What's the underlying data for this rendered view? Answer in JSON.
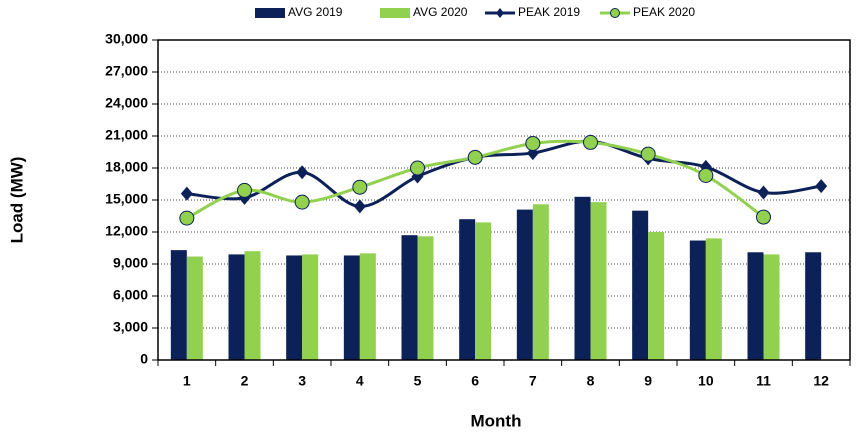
{
  "chart_data": {
    "type": "bar",
    "categories": [
      "1",
      "2",
      "3",
      "4",
      "5",
      "6",
      "7",
      "8",
      "9",
      "10",
      "11",
      "12"
    ],
    "x_label": "Month",
    "y_label": "Load (MW)",
    "ylim": [
      0,
      30000
    ],
    "yticks": [
      0,
      {
        "value": 3000,
        "label": "3,000"
      },
      {
        "value": 6000,
        "label": "6,000"
      },
      {
        "value": 9000,
        "label": "9,000"
      },
      {
        "value": 12000,
        "label": "12,000"
      },
      {
        "value": 15000,
        "label": "15,000"
      },
      {
        "value": 18000,
        "label": "18,000"
      },
      {
        "value": 21000,
        "label": "21,000"
      },
      {
        "value": 24000,
        "label": "24,000"
      },
      {
        "value": 27000,
        "label": "27,000"
      },
      {
        "value": 30000,
        "label": "30,000"
      }
    ],
    "grid": true,
    "legend": "top",
    "series": [
      {
        "name": "AVG 2019",
        "type": "bar",
        "color": "#0d2159",
        "values": [
          10300,
          9900,
          9800,
          9800,
          11700,
          13200,
          14100,
          15300,
          14000,
          11200,
          10100,
          10100
        ]
      },
      {
        "name": "AVG 2020",
        "type": "bar",
        "color": "#92d050",
        "values": [
          9700,
          10200,
          9900,
          10000,
          11600,
          12900,
          14600,
          14800,
          12000,
          11400,
          9900,
          null
        ]
      },
      {
        "name": "PEAK 2019",
        "type": "line",
        "marker": "diamond",
        "color": "#0d2159",
        "values": [
          15600,
          15200,
          17600,
          14400,
          17200,
          19000,
          19400,
          20500,
          18900,
          18100,
          15700,
          16300
        ]
      },
      {
        "name": "PEAK 2020",
        "type": "line",
        "marker": "circle",
        "color": "#92d050",
        "values": [
          13300,
          15900,
          14800,
          16200,
          18000,
          19000,
          20300,
          20400,
          19300,
          17300,
          13400,
          null
        ]
      }
    ]
  }
}
